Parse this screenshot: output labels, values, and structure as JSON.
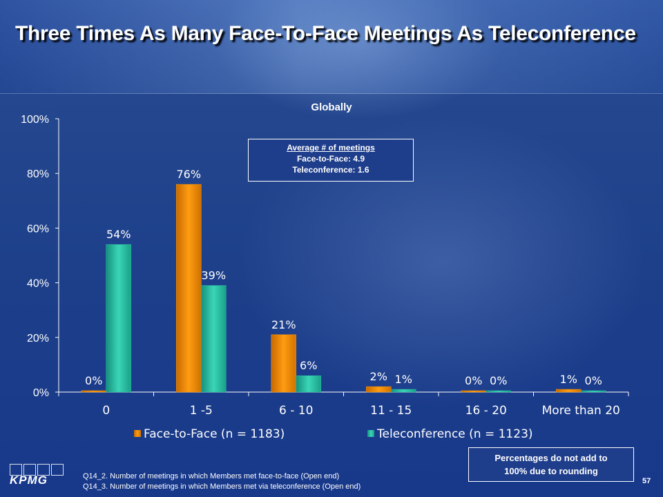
{
  "slide": {
    "title": "Three Times As Many Face-To-Face Meetings As Teleconference",
    "page_number": "57",
    "logo_text": "KPMG"
  },
  "average_box": {
    "heading": "Average # of meetings",
    "line1": "Face-to-Face: 4.9",
    "line2": "Teleconference: 1.6"
  },
  "note_box": {
    "line1": "Percentages do not add to",
    "line2": "100% due to rounding"
  },
  "footnotes": [
    "Q14_2. Number of meetings in which Members met face-to-face (Open end)",
    "Q14_3. Number of meetings in which Members met via teleconference (Open end)"
  ],
  "colors": {
    "face_to_face": "#ff9900",
    "teleconference": "#2ec4a8",
    "background": "#1f3f8c"
  },
  "chart_data": {
    "type": "bar",
    "title": "Globally",
    "categories": [
      "0",
      "1 -5",
      "6 - 10",
      "11 - 15",
      "16 - 20",
      "More than 20"
    ],
    "series": [
      {
        "name": "Face-to-Face (n = 1183)",
        "values": [
          0,
          76,
          21,
          2,
          0,
          1
        ],
        "labels": [
          "0%",
          "76%",
          "21%",
          "2%",
          "0%",
          "1%"
        ]
      },
      {
        "name": "Teleconference (n = 1123)",
        "values": [
          54,
          39,
          6,
          1,
          0,
          0
        ],
        "labels": [
          "54%",
          "39%",
          "6%",
          "1%",
          "0%",
          "0%"
        ]
      }
    ],
    "ylim": [
      0,
      100
    ],
    "yticks": [
      "0%",
      "20%",
      "40%",
      "60%",
      "80%",
      "100%"
    ],
    "legend_position": "bottom",
    "grid": false
  }
}
